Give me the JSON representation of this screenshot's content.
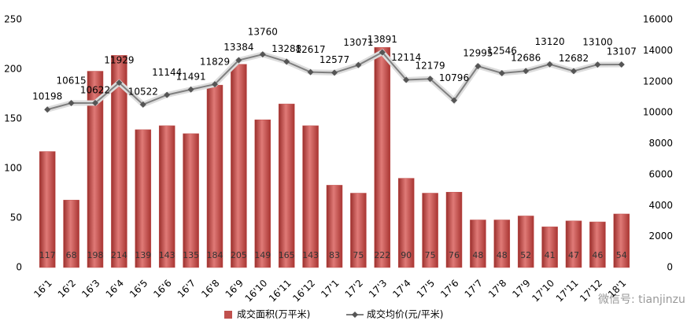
{
  "chart_data": {
    "type": "bar",
    "categories": [
      "16'1",
      "16'2",
      "16'3",
      "16'4",
      "16'5",
      "16'6",
      "16'7",
      "16'8",
      "16'9",
      "16'10",
      "16'11",
      "16'12",
      "17'1",
      "17'2",
      "17'3",
      "17'4",
      "17'5",
      "17'6",
      "17'7",
      "17'8",
      "17'9",
      "17'10",
      "17'11",
      "17'12",
      "18'1"
    ],
    "series": [
      {
        "name": "成交面积(万平米)",
        "color": "#c0504d",
        "values": [
          117,
          68,
          198,
          214,
          139,
          143,
          135,
          184,
          205,
          149,
          165,
          143,
          83,
          75,
          222,
          90,
          75,
          76,
          48,
          48,
          52,
          41,
          47,
          46,
          54
        ]
      },
      {
        "name": "成交均价(元/平米)",
        "type": "line",
        "axis": "y2",
        "color": "#7f7f7f",
        "values": [
          10198,
          10615,
          10622,
          11929,
          10522,
          11144,
          11491,
          11829,
          13384,
          13760,
          13288,
          12617,
          12577,
          13071,
          13891,
          12114,
          12179,
          10796,
          12995,
          12546,
          12686,
          13120,
          12682,
          13100,
          13107
        ]
      }
    ],
    "ylim": [
      0,
      250
    ],
    "yticks": [
      0,
      50,
      100,
      150,
      200,
      250
    ],
    "y2lim": [
      0,
      16000
    ],
    "y2ticks": [
      0,
      2000,
      4000,
      6000,
      8000,
      10000,
      12000,
      14000,
      16000
    ],
    "legend": "bottom",
    "watermark": "微信号: tianjinzu"
  }
}
